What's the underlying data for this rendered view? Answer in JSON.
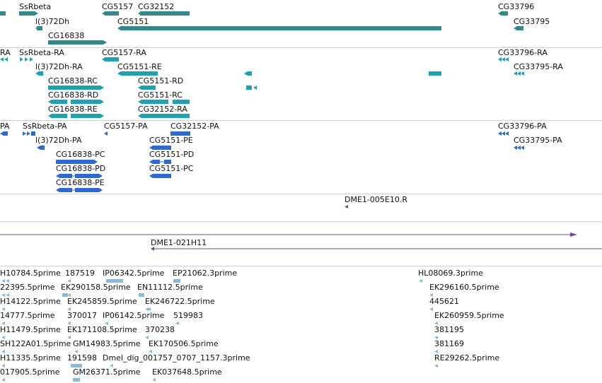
{
  "colors": {
    "gene": "#2e8b8b",
    "transcript": "#1aa3b7",
    "protein": "#2a6ad6",
    "clone": "#6a4ca8",
    "est": "#80bde0",
    "separator": "#c8c8c8"
  },
  "tracks": {
    "genes": {
      "labels": [
        "SsRbeta",
        "l(3)72Dh",
        "CG16838",
        "CG5157",
        "CG32152",
        "CG5151",
        "CG33796",
        "CG33795"
      ]
    },
    "transcripts": {
      "labels": [
        "RA",
        "SsRbeta-RA",
        "l(3)72Dh-RA",
        "CG16838-RC",
        "CG16838-RD",
        "CG16838-RE",
        "CG5157-RA",
        "CG5151-RE",
        "CG5151-RD",
        "CG5151-RC",
        "CG32152-RA",
        "CG33796-RA",
        "CG33795-RA"
      ]
    },
    "proteins": {
      "labels": [
        "PA",
        "SsRbeta-PA",
        "l(3)72Dh-PA",
        "CG16838-PC",
        "CG16838-PD",
        "CG16838-PE",
        "CG5157-PA",
        "CG32152-PA",
        "CG5151-PE",
        "CG5151-PD",
        "CG5151-PC",
        "CG33796-PA",
        "CG33795-PA"
      ]
    },
    "clones": {
      "labels": [
        "DME1-005E10.R",
        "DME1-021H11"
      ]
    },
    "ests": {
      "labels": [
        "H10784.5prime",
        "187519",
        "IP06342.5prime",
        "EP21062.3prime",
        "HL08069.3prime",
        "22395.5prime",
        "EK290158.5prime",
        "EN11112.5prime",
        "EK296160.5prime",
        "H14122.5prime",
        "EK245859.5prime",
        "EK246722.5prime",
        "445621",
        "14777.5prime",
        "370017",
        "IP06142.5prime",
        "519983",
        "EK260959.5prime",
        "H11479.5prime",
        "EK171108.5prime",
        "370238",
        "381195",
        "SH122A01.5prime",
        "GM14983.5prime",
        "EK170506.5prime",
        "381169",
        "H11335.5prime",
        "191598",
        "Dmel_dig_001757_0707_1157.3prime",
        "RE29262.5prime",
        "017905.5prime",
        "GM26371.5prime",
        "EK037648.5prime"
      ]
    }
  }
}
